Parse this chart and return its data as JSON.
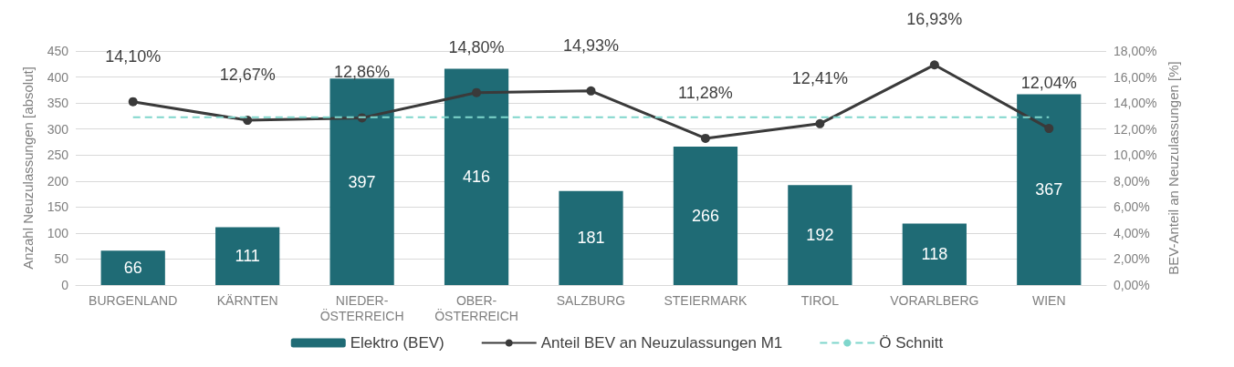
{
  "chart_data": {
    "type": "bar",
    "categories": [
      "BURGENLAND",
      "KÄRNTEN",
      "NIEDER-\nÖSTERREICH",
      "OBER-\nÖSTERREICH",
      "SALZBURG",
      "STEIERMARK",
      "TIROL",
      "VORARLBERG",
      "WIEN"
    ],
    "ylabel": "Anzahl Neuzulassungen [absolut]",
    "y2label": "BEV-Anteil an Neuzulassungen [%]",
    "ylim": [
      0,
      450
    ],
    "yticks": [
      0,
      50,
      100,
      150,
      200,
      250,
      300,
      350,
      400,
      450
    ],
    "y2lim": [
      0,
      18
    ],
    "y2ticks": [
      {
        "value": 0,
        "label": "0,00%"
      },
      {
        "value": 2,
        "label": "2,00%"
      },
      {
        "value": 4,
        "label": "4,00%"
      },
      {
        "value": 6,
        "label": "6,00%"
      },
      {
        "value": 8,
        "label": "8,00%"
      },
      {
        "value": 10,
        "label": "10,00%"
      },
      {
        "value": 12,
        "label": "12,00%"
      },
      {
        "value": 14,
        "label": "14,00%"
      },
      {
        "value": 16,
        "label": "16,00%"
      },
      {
        "value": 18,
        "label": "18,00%"
      }
    ],
    "grid": "y",
    "legend": "bottom",
    "series": [
      {
        "name": "Elektro (BEV)",
        "color": "#1f6b75",
        "values": [
          66,
          111,
          397,
          416,
          181,
          266,
          192,
          118,
          367
        ],
        "value_labels": [
          "66",
          "111",
          "397",
          "416",
          "181",
          "266",
          "192",
          "118",
          "367"
        ]
      },
      {
        "name": "Anteil BEV an Neuzulassungen M1",
        "type": "line",
        "axis": "y2",
        "color": "#3a3a3a",
        "marker": "circle",
        "line_style": "solid",
        "values": [
          14.1,
          12.67,
          12.86,
          14.8,
          14.93,
          11.28,
          12.41,
          16.93,
          12.04
        ],
        "value_labels": [
          "14,10%",
          "12,67%",
          "12,86%",
          "14,80%",
          "14,93%",
          "11,28%",
          "12,41%",
          "16,93%",
          "12,04%"
        ]
      },
      {
        "name": "Ö Schnitt",
        "type": "line",
        "axis": "y2",
        "color": "#7fd6cc",
        "marker": "none",
        "line_style": "dashed",
        "values": [
          12.9,
          12.9,
          12.9,
          12.9,
          12.9,
          12.9,
          12.9,
          12.9,
          12.9
        ]
      }
    ]
  }
}
